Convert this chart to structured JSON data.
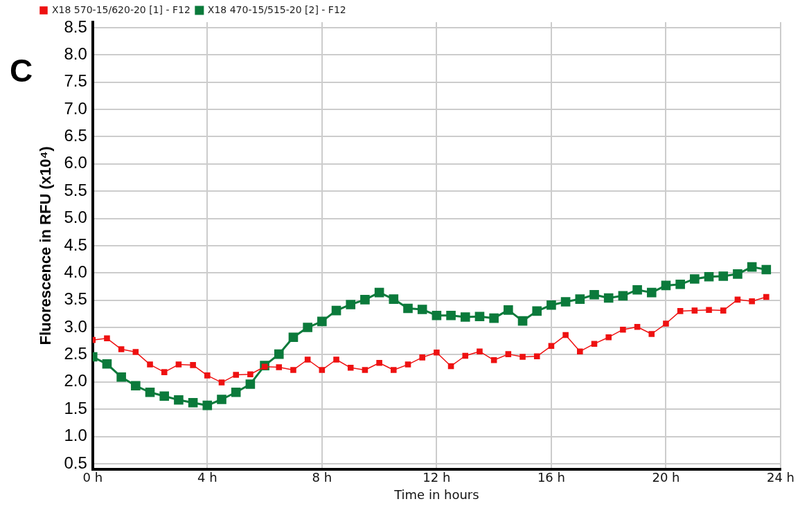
{
  "chart_data": {
    "type": "line",
    "xlabel": "Time in hours",
    "ylabel": "Fluorescence in RFU (x10⁴)",
    "annotations": [
      "C"
    ],
    "x": [
      0,
      0.5,
      1,
      1.5,
      2,
      2.5,
      3,
      3.5,
      4,
      4.5,
      5,
      5.5,
      6,
      6.5,
      7,
      7.5,
      8,
      8.5,
      9,
      9.5,
      10,
      10.5,
      11,
      11.5,
      12,
      12.5,
      13,
      13.5,
      14,
      14.5,
      15,
      15.5,
      16,
      16.5,
      17,
      17.5,
      18,
      18.5,
      19,
      19.5,
      20,
      20.5,
      21,
      21.5,
      22,
      22.5,
      23,
      23.5
    ],
    "series": [
      {
        "name": "X18 570-15/620-20 [1] - F12",
        "color": "#ee1111",
        "values": [
          2.77,
          2.8,
          2.6,
          2.55,
          2.32,
          2.18,
          2.32,
          2.31,
          2.12,
          1.99,
          2.13,
          2.14,
          2.28,
          2.27,
          2.22,
          2.41,
          2.22,
          2.41,
          2.26,
          2.22,
          2.35,
          2.22,
          2.32,
          2.45,
          2.54,
          2.29,
          2.48,
          2.56,
          2.4,
          2.51,
          2.46,
          2.47,
          2.66,
          2.86,
          2.56,
          2.7,
          2.82,
          2.96,
          3.01,
          2.88,
          3.07,
          3.3,
          3.31,
          3.32,
          3.31,
          3.51,
          3.48,
          3.56
        ]
      },
      {
        "name": "X18 470-15/515-20 [2] - F12",
        "color": "#0b7a3b",
        "values": [
          2.46,
          2.33,
          2.09,
          1.93,
          1.81,
          1.74,
          1.67,
          1.62,
          1.57,
          1.68,
          1.81,
          1.96,
          2.3,
          2.51,
          2.82,
          3.0,
          3.11,
          3.31,
          3.42,
          3.51,
          3.64,
          3.52,
          3.35,
          3.33,
          3.22,
          3.22,
          3.19,
          3.2,
          3.17,
          3.32,
          3.12,
          3.3,
          3.41,
          3.47,
          3.52,
          3.6,
          3.54,
          3.58,
          3.69,
          3.64,
          3.77,
          3.79,
          3.89,
          3.93,
          3.94,
          3.98,
          4.11,
          4.06
        ]
      }
    ],
    "xlim": [
      0,
      24
    ],
    "xticks": [
      {
        "value": 0,
        "label": "0 h"
      },
      {
        "value": 4,
        "label": "4 h"
      },
      {
        "value": 8,
        "label": "8 h"
      },
      {
        "value": 12,
        "label": "12 h"
      },
      {
        "value": 16,
        "label": "16 h"
      },
      {
        "value": 20,
        "label": "20 h"
      },
      {
        "value": 24,
        "label": "24 h"
      }
    ],
    "ylim": [
      0.4,
      8.6
    ],
    "yticks": [
      {
        "value": 0.5,
        "label": "0.5"
      },
      {
        "value": 1,
        "label": "1.0"
      },
      {
        "value": 1.5,
        "label": "1.5"
      },
      {
        "value": 2,
        "label": "2.0"
      },
      {
        "value": 2.5,
        "label": "2.5"
      },
      {
        "value": 3,
        "label": "3.0"
      },
      {
        "value": 3.5,
        "label": "3.5"
      },
      {
        "value": 4,
        "label": "4.0"
      },
      {
        "value": 4.5,
        "label": "4.5"
      },
      {
        "value": 5,
        "label": "5.0"
      },
      {
        "value": 5.5,
        "label": "5.5"
      },
      {
        "value": 6,
        "label": "6.0"
      },
      {
        "value": 6.5,
        "label": "6.5"
      },
      {
        "value": 7,
        "label": "7.0"
      },
      {
        "value": 7.5,
        "label": "7.5"
      },
      {
        "value": 8,
        "label": "8.0"
      },
      {
        "value": 8.5,
        "label": "8.5"
      }
    ],
    "grid": true,
    "legend": "top left",
    "marker": "square",
    "line_style": "solid"
  }
}
